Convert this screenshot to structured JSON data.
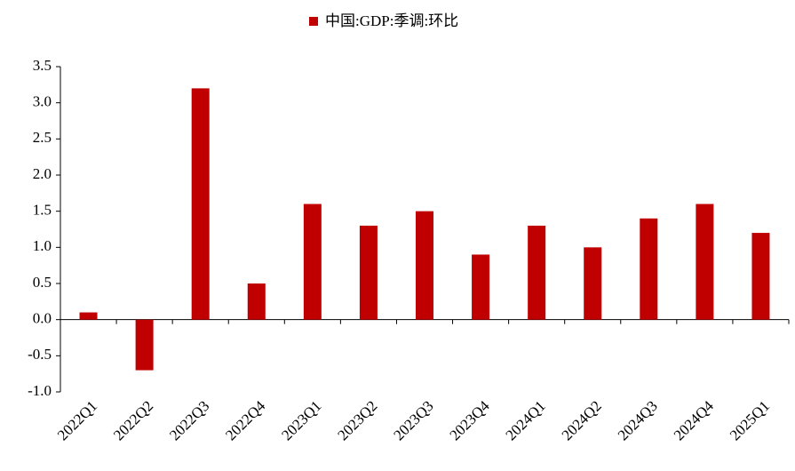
{
  "chart_data": {
    "type": "bar",
    "categories": [
      "2022Q1",
      "2022Q2",
      "2022Q3",
      "2022Q4",
      "2023Q1",
      "2023Q2",
      "2023Q3",
      "2023Q4",
      "2024Q1",
      "2024Q2",
      "2024Q3",
      "2024Q4",
      "2025Q1"
    ],
    "series": [
      {
        "name": "中国:GDP:季调:环比",
        "color": "#c00000",
        "values": [
          0.1,
          -0.7,
          3.2,
          0.5,
          1.6,
          1.3,
          1.5,
          0.9,
          1.3,
          1.0,
          1.4,
          1.6,
          1.2
        ]
      }
    ],
    "ylim": [
      -1.0,
      3.5
    ],
    "yticks": [
      {
        "value": -1.0,
        "label": "-1.0"
      },
      -0.5,
      {
        "value": 0.0,
        "label": "0.0"
      },
      0.5,
      {
        "value": 1.0,
        "label": "1.0"
      },
      1.5,
      {
        "value": 2.0,
        "label": "2.0"
      },
      2.5,
      {
        "value": 3.0,
        "label": "3.0"
      },
      3.5
    ],
    "grid": false,
    "legend": "top"
  }
}
